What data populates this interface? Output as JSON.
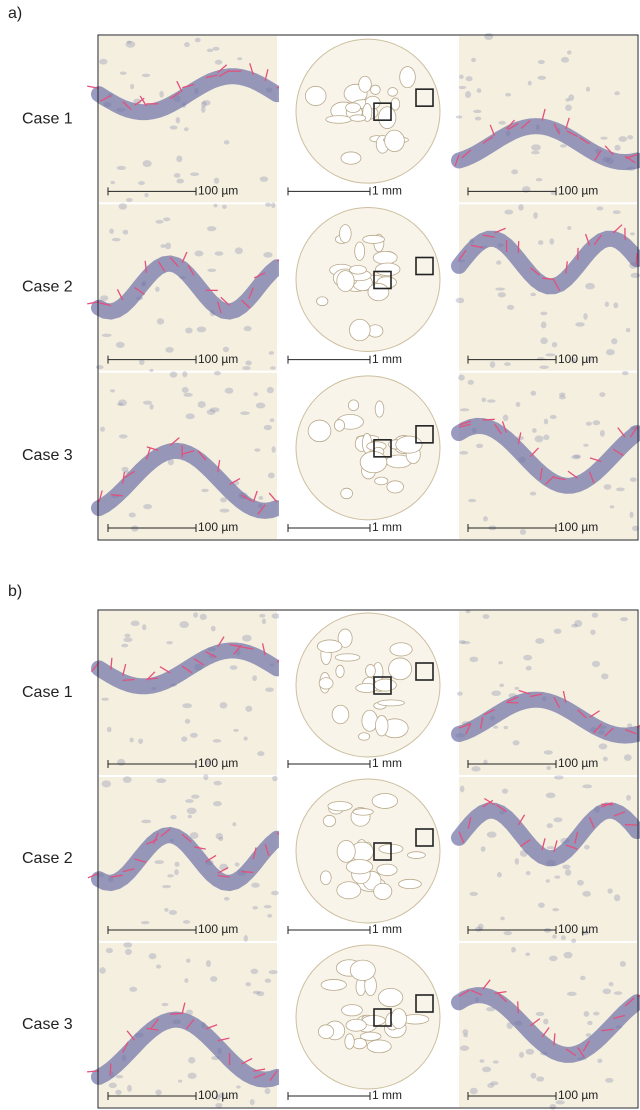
{
  "panels": [
    {
      "label": "a)",
      "rows": [
        {
          "label": "Case 1",
          "scale_bars": [
            "100 µm",
            "1 mm",
            "100 µm"
          ]
        },
        {
          "label": "Case 2",
          "scale_bars": [
            "100 µm",
            "1 mm",
            "100 µm"
          ]
        },
        {
          "label": "Case 3",
          "scale_bars": [
            "100 µm",
            "1 mm",
            "100 µm"
          ]
        }
      ]
    },
    {
      "label": "b)",
      "rows": [
        {
          "label": "Case 1",
          "scale_bars": [
            "100 µm",
            "1 mm",
            "100 µm"
          ]
        },
        {
          "label": "Case 2",
          "scale_bars": [
            "100 µm",
            "1 mm",
            "100 µm"
          ]
        },
        {
          "label": "Case 3",
          "scale_bars": [
            "100 µm",
            "1 mm",
            "100 µm"
          ]
        }
      ]
    }
  ]
}
